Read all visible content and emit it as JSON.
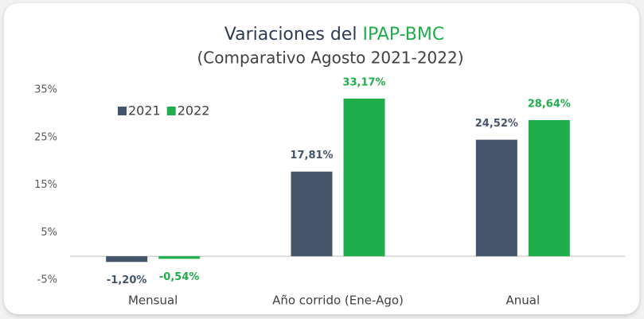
{
  "chart_data": {
    "type": "bar",
    "title": [
      "Variaciones del",
      "IPAP-BMC"
    ],
    "subtitle": "(Comparativo Agosto 2021-2022)",
    "categories": [
      "Mensual",
      "Año corrido (Ene-Ago)",
      "Anual"
    ],
    "series": [
      {
        "name": "2021",
        "color": "#44546a",
        "values": [
          -1.2,
          17.81,
          24.52
        ],
        "value_labels": [
          "-1,20%",
          "17,81%",
          "24,52%"
        ]
      },
      {
        "name": "2022",
        "color": "#1fae4b",
        "values": [
          -0.54,
          33.17,
          28.64
        ],
        "value_labels": [
          "-0,54%",
          "33,17%",
          "28,64%"
        ]
      }
    ],
    "ylim": [
      -5,
      35
    ],
    "yticks": [
      {
        "value": 35,
        "label": "35%"
      },
      {
        "value": 25,
        "label": "25%"
      },
      {
        "value": 15,
        "label": "15%"
      },
      {
        "value": 5,
        "label": "5%"
      },
      {
        "value": -5,
        "label": "-5%"
      }
    ],
    "legend": "top-left"
  }
}
